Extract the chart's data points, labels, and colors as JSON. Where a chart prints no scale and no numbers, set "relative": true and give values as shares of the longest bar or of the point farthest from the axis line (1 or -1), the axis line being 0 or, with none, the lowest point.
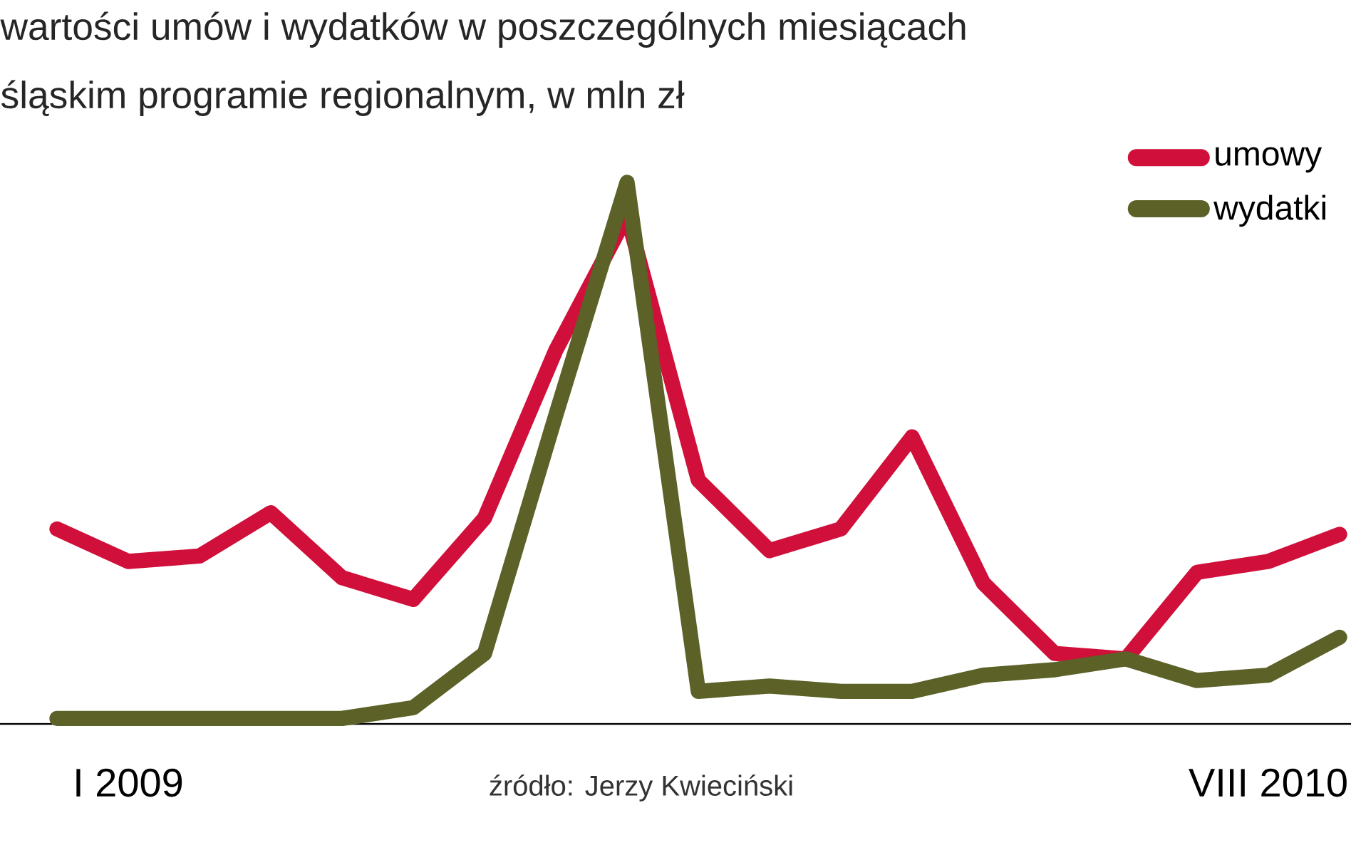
{
  "chart_data": {
    "type": "line",
    "title": "wartości umów i wydatków w poszczególnych miesiącach",
    "subtitle": "śląskim programie regionalnym, w mln zł",
    "relative": true,
    "categories": [
      null,
      "I 2009",
      null,
      null,
      null,
      null,
      null,
      null,
      null,
      null,
      null,
      null,
      null,
      null,
      null,
      null,
      null,
      "VIII 2010",
      null
    ],
    "series": [
      {
        "name": "umowy",
        "color": "#d0103a",
        "values": [
          0.36,
          0.3,
          0.31,
          0.39,
          0.27,
          0.23,
          0.38,
          0.69,
          0.94,
          0.45,
          0.32,
          0.36,
          0.53,
          0.26,
          0.13,
          0.12,
          0.28,
          0.3,
          0.35
        ]
      },
      {
        "name": "wydatki",
        "color": "#5b6127",
        "values": [
          0.01,
          0.01,
          0.01,
          0.01,
          0.01,
          0.03,
          0.13,
          0.57,
          1,
          0.06,
          0.07,
          0.06,
          0.06,
          0.09,
          0.1,
          0.12,
          0.08,
          0.09,
          0.16
        ]
      }
    ],
    "legend": "top right",
    "annotations": [
      "źródło: Jerzy Kwieciński"
    ]
  }
}
